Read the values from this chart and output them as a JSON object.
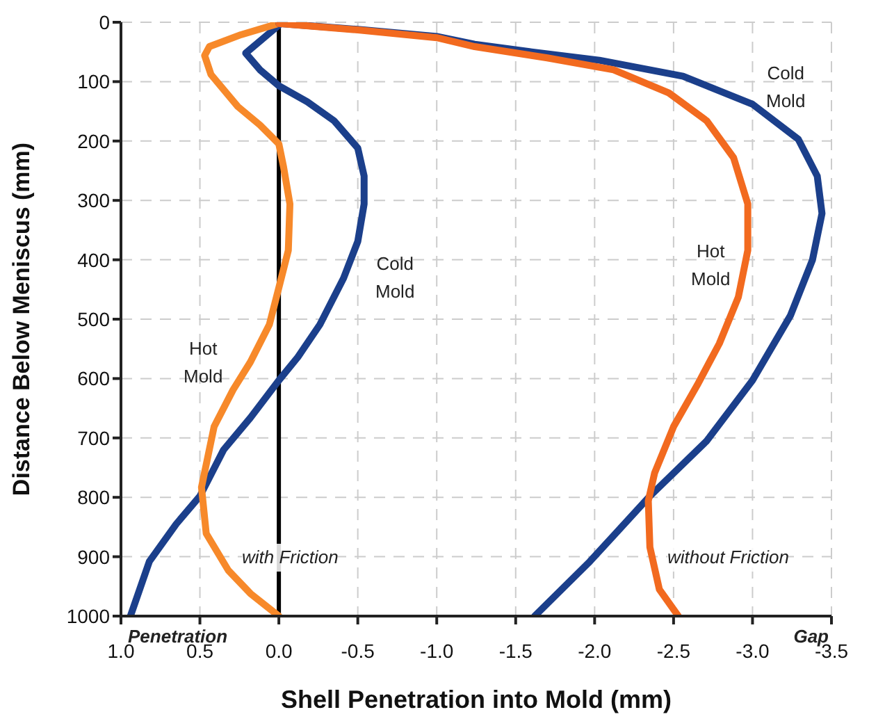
{
  "chart_data": {
    "type": "line",
    "xlabel": "Shell Penetration into Mold (mm)",
    "ylabel": "Distance Below Meniscus (mm)",
    "xlim": [
      1.0,
      -3.5
    ],
    "ylim": [
      1000,
      0
    ],
    "xticks": [
      {
        "value": 1.0,
        "label": "1.0"
      },
      {
        "value": 0.5,
        "label": "0.5"
      },
      {
        "value": 0,
        "label": "0.0"
      },
      {
        "value": -0.5,
        "label": "-0.5"
      },
      {
        "value": -1.0,
        "label": "-1.0"
      },
      {
        "value": -1.5,
        "label": "-1.5"
      },
      {
        "value": -2.0,
        "label": "-2.0"
      },
      {
        "value": -2.5,
        "label": "-2.5"
      },
      {
        "value": -3.0,
        "label": "-3.0"
      },
      {
        "value": -3.5,
        "label": "-3.5"
      }
    ],
    "yticks": [
      0,
      100,
      200,
      300,
      400,
      500,
      600,
      700,
      800,
      900,
      1000
    ],
    "grid": true,
    "marker": "none",
    "line_style": "solid",
    "ref_lines": [
      {
        "axis": "x",
        "value": 0,
        "color": "#000000",
        "line_style": "solid"
      }
    ],
    "series": [
      {
        "color": "#1b3f8b",
        "x": [
          0,
          0.21,
          0.12,
          0,
          -0.18,
          -0.35,
          -0.5,
          -0.54,
          -0.54,
          -0.5,
          -0.41,
          -0.26,
          -0.12,
          0,
          0.18,
          0.35,
          0.5,
          0.65,
          0.82,
          0.94
        ],
        "values": [
          5,
          52,
          80,
          107,
          134,
          166,
          212,
          259,
          306,
          369,
          431,
          509,
          564,
          603,
          666,
          720,
          798,
          845,
          908,
          1000
        ]
      },
      {
        "color": "#f7892a",
        "x": [
          0,
          0.24,
          0.44,
          0.47,
          0.43,
          0.26,
          0.12,
          0,
          -0.03,
          -0.07,
          -0.06,
          0,
          0.06,
          0.18,
          0.29,
          0.41,
          0.49,
          0.46,
          0.32,
          0.18,
          0
        ],
        "values": [
          2,
          21,
          41,
          56,
          88,
          142,
          173,
          205,
          244,
          306,
          384,
          447,
          509,
          572,
          619,
          681,
          783,
          861,
          923,
          962,
          1000
        ]
      },
      {
        "color": "#1b3f8b",
        "x": [
          0,
          -0.5,
          -1.0,
          -1.24,
          -1.6,
          -2.03,
          -2.56,
          -3.0,
          -3.29,
          -3.41,
          -3.44,
          -3.38,
          -3.24,
          -3.0,
          -2.71,
          -2.35,
          -1.97,
          -1.62
        ],
        "values": [
          2,
          12,
          24,
          37,
          50,
          64,
          91,
          138,
          197,
          259,
          322,
          400,
          494,
          603,
          705,
          798,
          908,
          1000
        ]
      },
      {
        "color": "#f26a1f",
        "x": [
          0,
          -0.5,
          -1.0,
          -1.24,
          -1.7,
          -2.12,
          -2.47,
          -2.71,
          -2.88,
          -2.97,
          -2.97,
          -2.91,
          -2.79,
          -2.65,
          -2.5,
          -2.38,
          -2.34,
          -2.35,
          -2.41,
          -2.53
        ],
        "values": [
          2,
          13,
          26,
          41,
          60,
          80,
          119,
          166,
          228,
          306,
          384,
          463,
          541,
          611,
          681,
          759,
          806,
          884,
          955,
          1000
        ]
      }
    ],
    "annotations": [
      "Cold\nMold",
      "Hot\nMold",
      "with Friction",
      "Cold\nMold",
      "Hot\nMold",
      "without Friction",
      "Penetration",
      "Gap"
    ]
  }
}
